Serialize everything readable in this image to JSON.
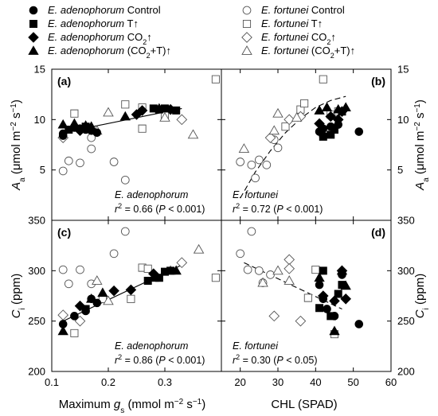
{
  "legend": [
    {
      "species": "E. adenophorum",
      "treatment": "Control",
      "marker": "circle",
      "filled": true
    },
    {
      "species": "E. fortunei",
      "treatment": "Control",
      "marker": "circle",
      "filled": false
    },
    {
      "species": "E. adenophorum",
      "treatment": "T↑",
      "marker": "square",
      "filled": true
    },
    {
      "species": "E. fortunei",
      "treatment": "T↑",
      "marker": "square",
      "filled": false
    },
    {
      "species": "E. adenophorum",
      "treatment": "CO2↑",
      "marker": "diamond",
      "filled": true
    },
    {
      "species": "E. fortunei",
      "treatment": "CO2↑",
      "marker": "diamond",
      "filled": false
    },
    {
      "species": "E. adenophorum",
      "treatment": "(CO2+T)↑",
      "marker": "triangle",
      "filled": true
    },
    {
      "species": "E. fortunei",
      "treatment": "(CO2+T)↑",
      "marker": "triangle",
      "filled": false
    }
  ],
  "axes": {
    "x_left_label": "Maximum gs (mmol m−2 s−1)",
    "x_right_label": "CHL (SPAD)",
    "y_top_label": "Aa (μmol m−2 s−1)",
    "y_bottom_label": "Ci (ppm)"
  },
  "chart_data": [
    {
      "type": "scatter",
      "panel": "(a)",
      "xlim": [
        0.1,
        0.4
      ],
      "ylim": [
        0,
        15
      ],
      "xticks": [
        0.1,
        0.2,
        0.3
      ],
      "yticks": [
        5,
        10,
        15
      ],
      "annotation_species": "E. adenophorum",
      "annotation_stat": "r2 = 0.66 (P < 0.001)",
      "fit": {
        "style": "solid",
        "x": [
          0.12,
          0.33
        ],
        "y": [
          8.7,
          11.1
        ]
      },
      "series": [
        {
          "name": "E. adenophorum Control",
          "points": [
            [
              0.12,
              8.6
            ],
            [
              0.14,
              9.2
            ],
            [
              0.15,
              9.1
            ],
            [
              0.16,
              9.0
            ],
            [
              0.17,
              8.9
            ],
            [
              0.18,
              8.7
            ],
            [
              0.12,
              8.4
            ]
          ]
        },
        {
          "name": "E. adenophorum T↑",
          "points": [
            [
              0.13,
              9.0
            ],
            [
              0.16,
              9.3
            ],
            [
              0.28,
              11.1
            ],
            [
              0.29,
              11.0
            ],
            [
              0.3,
              11.1
            ],
            [
              0.32,
              10.9
            ]
          ]
        },
        {
          "name": "E. adenophorum CO2↑",
          "points": [
            [
              0.15,
              8.9
            ],
            [
              0.25,
              10.5
            ],
            [
              0.26,
              10.9
            ],
            [
              0.31,
              11.0
            ]
          ]
        },
        {
          "name": "E. adenophorum (CO2+T)↑",
          "points": [
            [
              0.12,
              9.5
            ],
            [
              0.14,
              9.6
            ],
            [
              0.16,
              9.4
            ],
            [
              0.17,
              9.3
            ],
            [
              0.23,
              10.3
            ],
            [
              0.29,
              11.1
            ]
          ]
        },
        {
          "name": "E. fortunei Control",
          "points": [
            [
              0.12,
              4.9
            ],
            [
              0.13,
              5.9
            ],
            [
              0.15,
              5.7
            ],
            [
              0.17,
              7.1
            ],
            [
              0.17,
              8.2
            ],
            [
              0.21,
              5.8
            ],
            [
              0.23,
              4.0
            ]
          ]
        },
        {
          "name": "E. fortunei T↑",
          "points": [
            [
              0.14,
              10.6
            ],
            [
              0.23,
              11.5
            ],
            [
              0.26,
              9.1
            ],
            [
              0.26,
              11.2
            ],
            [
              0.3,
              10.4
            ],
            [
              0.39,
              14.0
            ]
          ]
        },
        {
          "name": "E. fortunei CO2↑",
          "points": [
            [
              0.12,
              8.2
            ],
            [
              0.33,
              10.0
            ]
          ]
        },
        {
          "name": "E. fortunei (CO2+T)↑",
          "points": [
            [
              0.18,
              8.9
            ],
            [
              0.2,
              10.7
            ],
            [
              0.3,
              10.2
            ],
            [
              0.35,
              8.5
            ]
          ]
        }
      ]
    },
    {
      "type": "scatter",
      "panel": "(b)",
      "xlim": [
        15,
        60
      ],
      "ylim": [
        0,
        15
      ],
      "xticks": [
        20,
        30,
        40,
        50,
        60
      ],
      "yticks": [
        5,
        10,
        15
      ],
      "annotation_species": "E. fortunei",
      "annotation_stat": "r2 = 0.72 (P < 0.001)",
      "fit": {
        "style": "dashed",
        "x": [
          20,
          24,
          28,
          32,
          36,
          40,
          44,
          48
        ],
        "y": [
          2.2,
          4.8,
          6.9,
          8.7,
          10.1,
          11.2,
          11.9,
          12.3
        ]
      },
      "series": [
        {
          "name": "E. adenophorum Control",
          "points": [
            [
              41,
              8.8
            ],
            [
              42,
              9.1
            ],
            [
              44,
              9.3
            ],
            [
              46,
              9.5
            ],
            [
              51.5,
              8.8
            ],
            [
              42,
              8.4
            ]
          ]
        },
        {
          "name": "E. adenophorum T↑",
          "points": [
            [
              42,
              8.3
            ],
            [
              44,
              8.5
            ],
            [
              45,
              9.0
            ],
            [
              47,
              10.8
            ]
          ]
        },
        {
          "name": "E. adenophorum CO2↑",
          "points": [
            [
              41,
              9.6
            ],
            [
              44,
              10.3
            ],
            [
              46,
              10.0
            ],
            [
              47,
              10.8
            ]
          ]
        },
        {
          "name": "E. adenophorum (CO2+T)↑",
          "points": [
            [
              41,
              10.9
            ],
            [
              43,
              11.2
            ],
            [
              46,
              11.0
            ],
            [
              48,
              11.2
            ]
          ]
        },
        {
          "name": "E. fortunei Control",
          "points": [
            [
              20,
              5.8
            ],
            [
              23,
              5.5
            ],
            [
              24,
              4.2
            ],
            [
              25,
              6.0
            ],
            [
              27,
              5.5
            ],
            [
              29,
              8.0
            ],
            [
              30,
              7.2
            ]
          ]
        },
        {
          "name": "E. fortunei T↑",
          "points": [
            [
              32,
              9.3
            ],
            [
              36,
              11.0
            ],
            [
              37,
              11.6
            ],
            [
              42,
              14.0
            ],
            [
              44,
              10.5
            ],
            [
              46,
              10.8
            ]
          ]
        },
        {
          "name": "E. fortunei CO2↑",
          "points": [
            [
              28,
              8.2
            ],
            [
              33,
              10.0
            ],
            [
              36,
              10.3
            ]
          ]
        },
        {
          "name": "E. fortunei (CO2+T)↑",
          "points": [
            [
              21,
              7.1
            ],
            [
              29,
              8.9
            ],
            [
              30,
              10.6
            ],
            [
              35,
              10.2
            ]
          ]
        }
      ]
    },
    {
      "type": "scatter",
      "panel": "(c)",
      "xlim": [
        0.1,
        0.4
      ],
      "ylim": [
        200,
        350
      ],
      "xticks": [
        0.1,
        0.2,
        0.3
      ],
      "yticks": [
        200,
        250,
        300,
        350
      ],
      "annotation_species": "E. adenophorum",
      "annotation_stat": "r2 = 0.86 (P < 0.001)",
      "fit": {
        "style": "solid",
        "x": [
          0.12,
          0.335
        ],
        "y": [
          250,
          307
        ]
      },
      "series": [
        {
          "name": "E. adenophorum Control",
          "points": [
            [
              0.12,
              247
            ],
            [
              0.14,
              255
            ],
            [
              0.16,
              260
            ],
            [
              0.17,
              272
            ],
            [
              0.18,
              268
            ]
          ]
        },
        {
          "name": "E. adenophorum T↑",
          "points": [
            [
              0.16,
              262
            ],
            [
              0.27,
              290
            ],
            [
              0.29,
              293
            ],
            [
              0.3,
              299
            ],
            [
              0.31,
              300
            ]
          ]
        },
        {
          "name": "E. adenophorum CO2↑",
          "points": [
            [
              0.15,
              265
            ],
            [
              0.21,
              280
            ],
            [
              0.24,
              281
            ],
            [
              0.28,
              297
            ]
          ]
        },
        {
          "name": "E. adenophorum (CO2+T)↑",
          "points": [
            [
              0.12,
              240
            ],
            [
              0.17,
              272
            ],
            [
              0.19,
              278
            ],
            [
              0.28,
              293
            ],
            [
              0.32,
              300
            ]
          ]
        },
        {
          "name": "E. fortunei Control",
          "points": [
            [
              0.12,
              301
            ],
            [
              0.13,
              287
            ],
            [
              0.15,
              301
            ],
            [
              0.17,
              287
            ],
            [
              0.21,
              317
            ],
            [
              0.23,
              339
            ]
          ]
        },
        {
          "name": "E. fortunei T↑",
          "points": [
            [
              0.14,
              238
            ],
            [
              0.19,
              272
            ],
            [
              0.24,
              272
            ],
            [
              0.26,
              303
            ],
            [
              0.27,
              302
            ],
            [
              0.39,
              293
            ]
          ]
        },
        {
          "name": "E. fortunei CO2↑",
          "points": [
            [
              0.12,
              256
            ],
            [
              0.15,
              250
            ],
            [
              0.33,
              308
            ]
          ]
        },
        {
          "name": "E. fortunei (CO2+T)↑",
          "points": [
            [
              0.18,
              290
            ],
            [
              0.2,
              270
            ],
            [
              0.31,
              300
            ],
            [
              0.36,
              321
            ]
          ]
        }
      ]
    },
    {
      "type": "scatter",
      "panel": "(d)",
      "xlim": [
        15,
        60
      ],
      "ylim": [
        200,
        350
      ],
      "xticks": [
        20,
        30,
        40,
        50,
        60
      ],
      "yticks": [
        200,
        250,
        300,
        350
      ],
      "annotation_species": "E. fortunei",
      "annotation_stat": "r2 = 0.30 (P < 0.05)",
      "fit": {
        "style": "dashed",
        "x": [
          21,
          47
        ],
        "y": [
          308,
          262
        ]
      },
      "series": [
        {
          "name": "E. adenophorum Control",
          "points": [
            [
              41,
              286
            ],
            [
              42,
              272
            ],
            [
              43,
              262
            ],
            [
              45,
              255
            ],
            [
              47,
              296
            ],
            [
              51.5,
              247
            ]
          ]
        },
        {
          "name": "E. adenophorum T↑",
          "points": [
            [
              41,
              263
            ],
            [
              42,
              300
            ],
            [
              44,
              255
            ],
            [
              46,
              277
            ],
            [
              47,
              286
            ]
          ]
        },
        {
          "name": "E. adenophorum CO2↑",
          "points": [
            [
              42,
              275
            ],
            [
              45,
              270
            ],
            [
              47,
              300
            ],
            [
              48,
              272
            ]
          ]
        },
        {
          "name": "E. adenophorum (CO2+T)↑",
          "points": [
            [
              41,
              293
            ],
            [
              45,
              240
            ],
            [
              47,
              300
            ],
            [
              48,
              285
            ]
          ]
        },
        {
          "name": "E. fortunei Control",
          "points": [
            [
              20,
              317
            ],
            [
              22,
              301
            ],
            [
              23,
              339
            ],
            [
              25,
              300
            ],
            [
              26,
              288
            ],
            [
              28,
              296
            ]
          ]
        },
        {
          "name": "E. fortunei T↑",
          "points": [
            [
              38,
              273
            ],
            [
              40,
              301
            ],
            [
              45,
              237
            ]
          ]
        },
        {
          "name": "E. fortunei CO2↑",
          "points": [
            [
              29,
              255
            ],
            [
              33,
              311
            ],
            [
              33,
              302
            ],
            [
              36,
              250
            ]
          ]
        },
        {
          "name": "E. fortunei (CO2+T)↑",
          "points": [
            [
              26,
              288
            ],
            [
              30,
              300
            ],
            [
              33,
              290
            ]
          ]
        }
      ]
    }
  ]
}
